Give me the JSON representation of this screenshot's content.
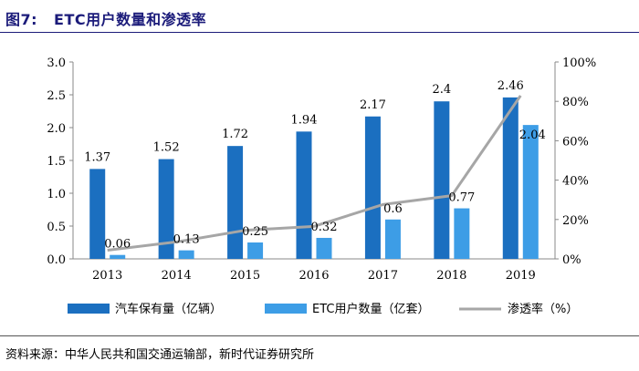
{
  "figure": {
    "number": "图7:",
    "title": "ETC用户数量和渗透率"
  },
  "source": "资料来源：中华人民共和国交通运输部，新时代证券研究所",
  "colors": {
    "vehicles": "#1b6fc0",
    "etc_users": "#3d9de6",
    "penetration": "#a6a6a6",
    "title": "#1b1b7a"
  },
  "chart_data": {
    "type": "bar",
    "categories": [
      "2013",
      "2014",
      "2015",
      "2016",
      "2017",
      "2018",
      "2019"
    ],
    "series": [
      {
        "name": "汽车保有量（亿辆）",
        "kind": "bar",
        "axis": "left",
        "values": [
          1.37,
          1.52,
          1.72,
          1.94,
          2.17,
          2.4,
          2.46
        ],
        "labels": [
          "1.37",
          "1.52",
          "1.72",
          "1.94",
          "2.17",
          "2.4",
          "2.46"
        ]
      },
      {
        "name": "ETC用户数量（亿套）",
        "kind": "bar",
        "axis": "left",
        "values": [
          0.06,
          0.13,
          0.25,
          0.32,
          0.6,
          0.77,
          2.04
        ],
        "labels": [
          "0.06",
          "0.13",
          "0.25",
          "0.32",
          "0.6",
          "0.77",
          "2.04"
        ]
      },
      {
        "name": "渗透率（%）",
        "kind": "line",
        "axis": "right",
        "values": [
          4.4,
          8.6,
          14.5,
          16.5,
          27.6,
          32.1,
          82.9
        ]
      }
    ],
    "y_left": {
      "min": 0,
      "max": 3.0,
      "ticks": [
        "0.0",
        "0.5",
        "1.0",
        "1.5",
        "2.0",
        "2.5",
        "3.0"
      ]
    },
    "y_right": {
      "min": 0,
      "max": 100,
      "ticks": [
        "0%",
        "20%",
        "40%",
        "60%",
        "80%",
        "100%"
      ]
    },
    "grid": false,
    "legend_position": "bottom"
  }
}
